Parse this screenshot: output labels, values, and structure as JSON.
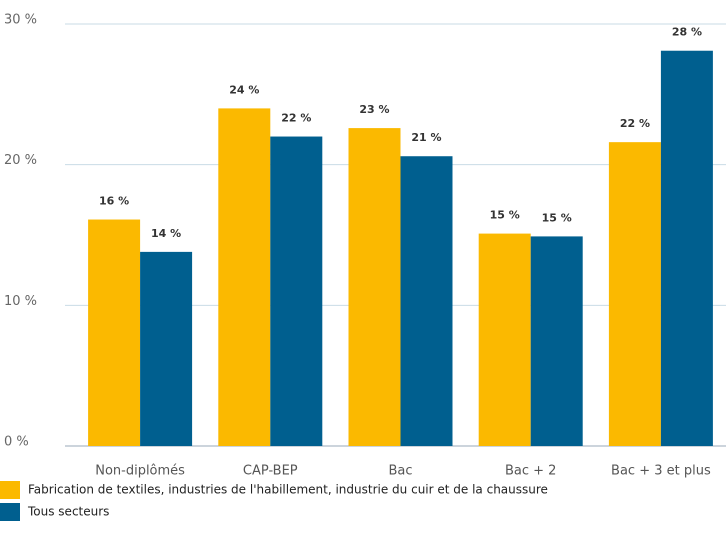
{
  "chart_data": {
    "type": "bar",
    "categories": [
      "Non-diplômés",
      "CAP-BEP",
      "Bac",
      "Bac + 2",
      "Bac + 3 et plus"
    ],
    "series": [
      {
        "name": "Fabrication de textiles, industries de l'habillement, industrie du cuir et de la chaussure",
        "color": "#fbb900",
        "values": [
          16.1,
          24.0,
          22.6,
          15.1,
          21.6
        ],
        "value_labels": [
          "16 %",
          "24 %",
          "23 %",
          "15 %",
          "22 %"
        ]
      },
      {
        "name": "Tous secteurs",
        "color": "#005f8f",
        "values": [
          13.8,
          22.0,
          20.6,
          14.9,
          28.1
        ],
        "value_labels": [
          "14 %",
          "22 %",
          "21 %",
          "15 %",
          "28 %"
        ]
      }
    ],
    "ylim": [
      0,
      30
    ],
    "yticks": [
      {
        "value": 0,
        "label": "0 %"
      },
      {
        "value": 10,
        "label": "10 %"
      },
      {
        "value": 20,
        "label": "20 %"
      },
      {
        "value": 30,
        "label": "30 %"
      }
    ],
    "grid": true
  }
}
